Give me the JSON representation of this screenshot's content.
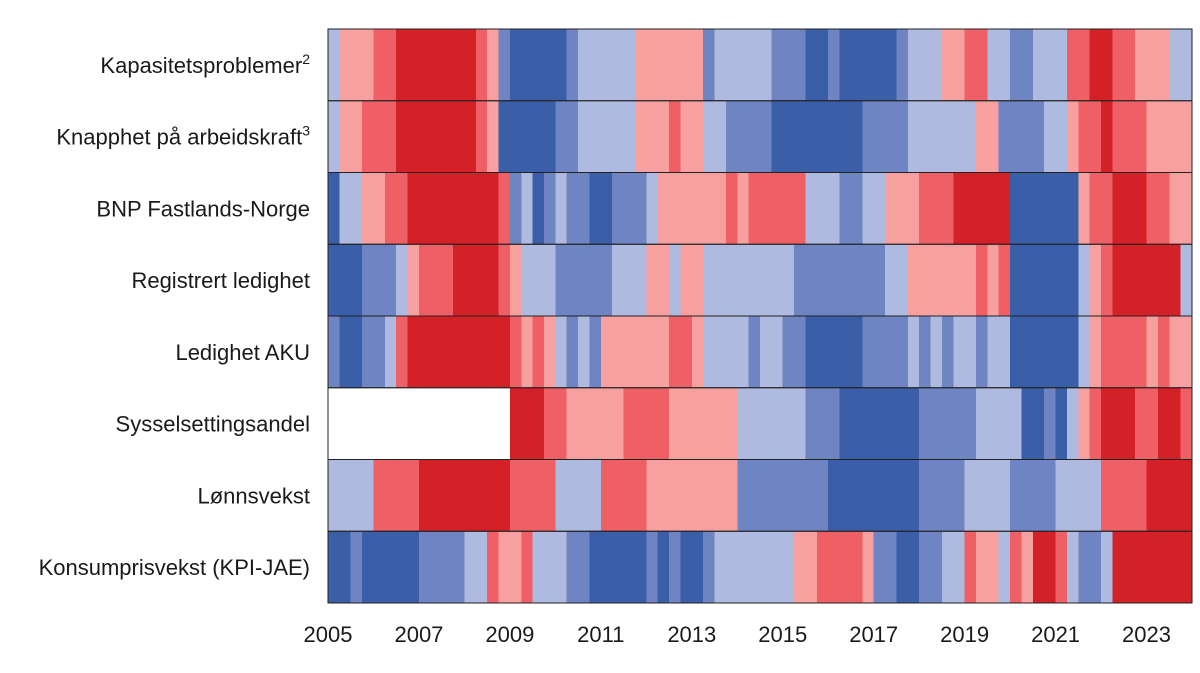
{
  "chart_data": {
    "type": "heatmap",
    "title": "",
    "xlabel": "",
    "ylabel": "",
    "x_range": [
      2005,
      2024
    ],
    "x_ticks": [
      2005,
      2007,
      2009,
      2011,
      2013,
      2015,
      2017,
      2019,
      2021,
      2023
    ],
    "x_tick_labels": [
      "2005",
      "2007",
      "2009",
      "2011",
      "2013",
      "2015",
      "2017",
      "2019",
      "2021",
      "2023"
    ],
    "colors": {
      "-3": "#3a5ea8",
      "-2": "#6f84c2",
      "-1": "#aebadf",
      "1": "#f6a0a0",
      "2": "#ef5f66",
      "3": "#d42127",
      "missing": "#ffffff",
      "border": "#222222"
    },
    "rows": [
      {
        "label": "Kapasitetsproblemer",
        "sup": "2",
        "segments": [
          [
            2005.0,
            2005.25,
            -1
          ],
          [
            2005.25,
            2006.0,
            1
          ],
          [
            2006.0,
            2006.5,
            2
          ],
          [
            2006.5,
            2008.25,
            3
          ],
          [
            2008.25,
            2008.5,
            2
          ],
          [
            2008.5,
            2008.75,
            1
          ],
          [
            2008.75,
            2009.0,
            -2
          ],
          [
            2009.0,
            2010.25,
            -3
          ],
          [
            2010.25,
            2010.5,
            -2
          ],
          [
            2010.5,
            2011.75,
            -1
          ],
          [
            2011.75,
            2013.25,
            1
          ],
          [
            2013.25,
            2013.5,
            -2
          ],
          [
            2013.5,
            2014.75,
            -1
          ],
          [
            2014.75,
            2015.5,
            -2
          ],
          [
            2015.5,
            2016.0,
            -3
          ],
          [
            2016.0,
            2016.25,
            -2
          ],
          [
            2016.25,
            2017.5,
            -3
          ],
          [
            2017.5,
            2017.75,
            -2
          ],
          [
            2017.75,
            2018.5,
            -1
          ],
          [
            2018.5,
            2019.0,
            1
          ],
          [
            2019.0,
            2019.5,
            2
          ],
          [
            2019.5,
            2020.0,
            -1
          ],
          [
            2020.0,
            2020.5,
            -2
          ],
          [
            2020.5,
            2021.25,
            -1
          ],
          [
            2021.25,
            2021.75,
            2
          ],
          [
            2021.75,
            2022.25,
            3
          ],
          [
            2022.25,
            2022.75,
            2
          ],
          [
            2022.75,
            2023.5,
            1
          ],
          [
            2023.5,
            2024.0,
            -1
          ]
        ]
      },
      {
        "label": "Knapphet på arbeidskraft",
        "sup": "3",
        "segments": [
          [
            2005.0,
            2005.25,
            -1
          ],
          [
            2005.25,
            2005.75,
            1
          ],
          [
            2005.75,
            2006.5,
            2
          ],
          [
            2006.5,
            2008.25,
            3
          ],
          [
            2008.25,
            2008.5,
            2
          ],
          [
            2008.5,
            2008.75,
            1
          ],
          [
            2008.75,
            2009.5,
            -3
          ],
          [
            2009.5,
            2010.0,
            -3
          ],
          [
            2010.0,
            2010.5,
            -2
          ],
          [
            2010.5,
            2011.75,
            -1
          ],
          [
            2011.75,
            2012.5,
            1
          ],
          [
            2012.5,
            2012.75,
            2
          ],
          [
            2012.75,
            2013.25,
            1
          ],
          [
            2013.25,
            2013.75,
            -1
          ],
          [
            2013.75,
            2014.75,
            -2
          ],
          [
            2014.75,
            2016.75,
            -3
          ],
          [
            2016.75,
            2017.75,
            -2
          ],
          [
            2017.75,
            2019.25,
            -1
          ],
          [
            2019.25,
            2019.75,
            1
          ],
          [
            2019.75,
            2020.75,
            -2
          ],
          [
            2020.75,
            2021.25,
            -1
          ],
          [
            2021.25,
            2021.5,
            1
          ],
          [
            2021.5,
            2022.0,
            2
          ],
          [
            2022.0,
            2022.25,
            3
          ],
          [
            2022.25,
            2023.0,
            2
          ],
          [
            2023.0,
            2024.0,
            1
          ]
        ]
      },
      {
        "label": "BNP Fastlands-Norge",
        "segments": [
          [
            2005.0,
            2005.25,
            -3
          ],
          [
            2005.25,
            2005.75,
            -1
          ],
          [
            2005.75,
            2006.25,
            1
          ],
          [
            2006.25,
            2006.75,
            2
          ],
          [
            2006.75,
            2008.75,
            3
          ],
          [
            2008.75,
            2009.0,
            2
          ],
          [
            2009.0,
            2009.25,
            -2
          ],
          [
            2009.25,
            2009.5,
            -1
          ],
          [
            2009.5,
            2009.75,
            -3
          ],
          [
            2009.75,
            2010.0,
            -2
          ],
          [
            2010.0,
            2010.25,
            -1
          ],
          [
            2010.25,
            2010.75,
            -2
          ],
          [
            2010.75,
            2011.25,
            -3
          ],
          [
            2011.25,
            2012.0,
            -2
          ],
          [
            2012.0,
            2012.25,
            -1
          ],
          [
            2012.25,
            2013.75,
            1
          ],
          [
            2013.75,
            2014.0,
            2
          ],
          [
            2014.0,
            2014.25,
            1
          ],
          [
            2014.25,
            2015.5,
            2
          ],
          [
            2015.5,
            2016.25,
            -1
          ],
          [
            2016.25,
            2016.75,
            -2
          ],
          [
            2016.75,
            2017.25,
            -1
          ],
          [
            2017.25,
            2018.0,
            1
          ],
          [
            2018.0,
            2018.75,
            2
          ],
          [
            2018.75,
            2020.0,
            3
          ],
          [
            2020.0,
            2021.5,
            -3
          ],
          [
            2021.5,
            2021.75,
            1
          ],
          [
            2021.75,
            2022.25,
            2
          ],
          [
            2022.25,
            2023.0,
            3
          ],
          [
            2023.0,
            2023.5,
            2
          ],
          [
            2023.5,
            2024.0,
            1
          ]
        ]
      },
      {
        "label": "Registrert ledighet",
        "segments": [
          [
            2005.0,
            2005.75,
            -3
          ],
          [
            2005.75,
            2006.5,
            -2
          ],
          [
            2006.5,
            2006.75,
            -1
          ],
          [
            2006.75,
            2007.0,
            1
          ],
          [
            2007.0,
            2007.75,
            2
          ],
          [
            2007.75,
            2008.75,
            3
          ],
          [
            2008.75,
            2009.0,
            2
          ],
          [
            2009.0,
            2009.25,
            1
          ],
          [
            2009.25,
            2010.0,
            -1
          ],
          [
            2010.0,
            2011.25,
            -2
          ],
          [
            2011.25,
            2012.0,
            -1
          ],
          [
            2012.0,
            2012.5,
            1
          ],
          [
            2012.5,
            2012.75,
            -1
          ],
          [
            2012.75,
            2013.25,
            1
          ],
          [
            2013.25,
            2015.25,
            -1
          ],
          [
            2015.25,
            2017.25,
            -2
          ],
          [
            2017.25,
            2017.75,
            -1
          ],
          [
            2017.75,
            2019.25,
            1
          ],
          [
            2019.25,
            2019.5,
            2
          ],
          [
            2019.5,
            2019.75,
            1
          ],
          [
            2019.75,
            2020.0,
            2
          ],
          [
            2020.0,
            2021.5,
            -3
          ],
          [
            2021.5,
            2021.75,
            -1
          ],
          [
            2021.75,
            2022.0,
            1
          ],
          [
            2022.0,
            2022.25,
            2
          ],
          [
            2022.25,
            2023.75,
            3
          ],
          [
            2023.75,
            2024.0,
            -1
          ]
        ]
      },
      {
        "label": "Ledighet AKU",
        "segments": [
          [
            2005.0,
            2005.25,
            -2
          ],
          [
            2005.25,
            2005.75,
            -3
          ],
          [
            2005.75,
            2006.25,
            -2
          ],
          [
            2006.25,
            2006.5,
            -1
          ],
          [
            2006.5,
            2006.75,
            2
          ],
          [
            2006.75,
            2009.0,
            3
          ],
          [
            2009.0,
            2009.25,
            2
          ],
          [
            2009.25,
            2009.5,
            1
          ],
          [
            2009.5,
            2009.75,
            2
          ],
          [
            2009.75,
            2010.0,
            1
          ],
          [
            2010.0,
            2010.25,
            -1
          ],
          [
            2010.25,
            2010.5,
            -2
          ],
          [
            2010.5,
            2010.75,
            -1
          ],
          [
            2010.75,
            2011.0,
            -2
          ],
          [
            2011.0,
            2012.5,
            1
          ],
          [
            2012.5,
            2013.0,
            2
          ],
          [
            2013.0,
            2013.25,
            1
          ],
          [
            2013.25,
            2014.25,
            -1
          ],
          [
            2014.25,
            2014.5,
            -2
          ],
          [
            2014.5,
            2015.0,
            -1
          ],
          [
            2015.0,
            2015.5,
            -2
          ],
          [
            2015.5,
            2016.75,
            -3
          ],
          [
            2016.75,
            2017.75,
            -2
          ],
          [
            2017.75,
            2018.0,
            -1
          ],
          [
            2018.0,
            2018.25,
            -2
          ],
          [
            2018.25,
            2018.5,
            -1
          ],
          [
            2018.5,
            2018.75,
            -2
          ],
          [
            2018.75,
            2019.25,
            -1
          ],
          [
            2019.25,
            2019.5,
            -2
          ],
          [
            2019.5,
            2020.0,
            -1
          ],
          [
            2020.0,
            2020.25,
            -3
          ],
          [
            2020.25,
            2021.5,
            -3
          ],
          [
            2021.5,
            2021.75,
            -1
          ],
          [
            2021.75,
            2022.0,
            1
          ],
          [
            2022.0,
            2023.0,
            2
          ],
          [
            2023.0,
            2023.25,
            1
          ],
          [
            2023.25,
            2023.5,
            2
          ],
          [
            2023.5,
            2024.0,
            1
          ]
        ]
      },
      {
        "label": "Sysselsettingsandel",
        "segments": [
          [
            2005.0,
            2009.0,
            null
          ],
          [
            2009.0,
            2009.75,
            3
          ],
          [
            2009.75,
            2010.25,
            2
          ],
          [
            2010.25,
            2011.5,
            1
          ],
          [
            2011.5,
            2012.5,
            2
          ],
          [
            2012.5,
            2014.0,
            1
          ],
          [
            2014.0,
            2015.5,
            -1
          ],
          [
            2015.5,
            2016.25,
            -2
          ],
          [
            2016.25,
            2018.0,
            -3
          ],
          [
            2018.0,
            2019.25,
            -2
          ],
          [
            2019.25,
            2020.25,
            -1
          ],
          [
            2020.25,
            2020.75,
            -3
          ],
          [
            2020.75,
            2021.0,
            -2
          ],
          [
            2021.0,
            2021.25,
            -3
          ],
          [
            2021.25,
            2021.5,
            -1
          ],
          [
            2021.5,
            2021.75,
            1
          ],
          [
            2021.75,
            2022.0,
            2
          ],
          [
            2022.0,
            2022.75,
            3
          ],
          [
            2022.75,
            2023.25,
            2
          ],
          [
            2023.25,
            2023.75,
            3
          ],
          [
            2023.75,
            2024.0,
            2
          ]
        ]
      },
      {
        "label": "Lønnsvekst",
        "segments": [
          [
            2005.0,
            2006.0,
            -1
          ],
          [
            2006.0,
            2007.0,
            2
          ],
          [
            2007.0,
            2009.0,
            3
          ],
          [
            2009.0,
            2010.0,
            2
          ],
          [
            2010.0,
            2011.0,
            -1
          ],
          [
            2011.0,
            2012.0,
            2
          ],
          [
            2012.0,
            2014.0,
            1
          ],
          [
            2014.0,
            2016.0,
            -2
          ],
          [
            2016.0,
            2018.0,
            -3
          ],
          [
            2018.0,
            2019.0,
            -2
          ],
          [
            2019.0,
            2020.0,
            -1
          ],
          [
            2020.0,
            2021.0,
            -2
          ],
          [
            2021.0,
            2022.0,
            -1
          ],
          [
            2022.0,
            2023.0,
            2
          ],
          [
            2023.0,
            2024.0,
            3
          ]
        ]
      },
      {
        "label": "Konsumprisvekst (KPI-JAE)",
        "segments": [
          [
            2005.0,
            2005.5,
            -3
          ],
          [
            2005.5,
            2005.75,
            -2
          ],
          [
            2005.75,
            2007.0,
            -3
          ],
          [
            2007.0,
            2008.0,
            -2
          ],
          [
            2008.0,
            2008.5,
            -1
          ],
          [
            2008.5,
            2008.75,
            2
          ],
          [
            2008.75,
            2009.25,
            1
          ],
          [
            2009.25,
            2009.5,
            2
          ],
          [
            2009.5,
            2010.25,
            -1
          ],
          [
            2010.25,
            2010.75,
            -2
          ],
          [
            2010.75,
            2012.0,
            -3
          ],
          [
            2012.0,
            2012.25,
            -2
          ],
          [
            2012.25,
            2012.5,
            -3
          ],
          [
            2012.5,
            2012.75,
            -2
          ],
          [
            2012.75,
            2013.25,
            -3
          ],
          [
            2013.25,
            2013.5,
            -2
          ],
          [
            2013.5,
            2015.25,
            -1
          ],
          [
            2015.25,
            2015.75,
            1
          ],
          [
            2015.75,
            2016.75,
            2
          ],
          [
            2016.75,
            2017.0,
            1
          ],
          [
            2017.0,
            2017.5,
            -2
          ],
          [
            2017.5,
            2018.0,
            -3
          ],
          [
            2018.0,
            2018.5,
            -2
          ],
          [
            2018.5,
            2019.0,
            -1
          ],
          [
            2019.0,
            2019.25,
            2
          ],
          [
            2019.25,
            2019.75,
            1
          ],
          [
            2019.75,
            2020.0,
            -1
          ],
          [
            2020.0,
            2020.25,
            2
          ],
          [
            2020.25,
            2020.5,
            1
          ],
          [
            2020.5,
            2021.0,
            3
          ],
          [
            2021.0,
            2021.25,
            2
          ],
          [
            2021.25,
            2021.5,
            -1
          ],
          [
            2021.5,
            2022.0,
            -2
          ],
          [
            2022.0,
            2022.25,
            -1
          ],
          [
            2022.25,
            2024.0,
            3
          ]
        ]
      }
    ]
  }
}
